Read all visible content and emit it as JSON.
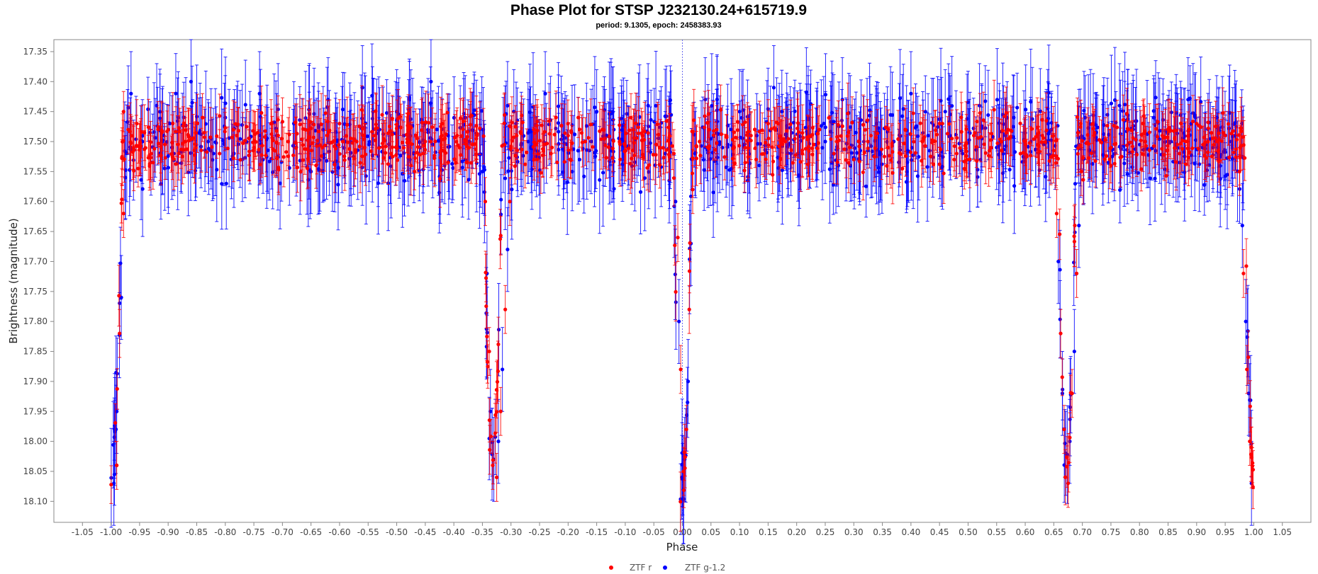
{
  "chart_data": {
    "type": "scatter",
    "title": "Phase Plot for STSP J232130.24+615719.9",
    "subtitle": "period: 9.1305, epoch: 2458383.93",
    "xlabel": "Phase",
    "ylabel": "Brightness (magnitude)",
    "xlim": [
      -1.1,
      1.1
    ],
    "ylim": [
      18.135,
      17.33
    ],
    "y_inverted": true,
    "x_ticks": [
      -1.05,
      -1.0,
      -0.95,
      -0.9,
      -0.85,
      -0.8,
      -0.75,
      -0.7,
      -0.65,
      -0.6,
      -0.55,
      -0.5,
      -0.45,
      -0.4,
      -0.35,
      -0.3,
      -0.25,
      -0.2,
      -0.15,
      -0.1,
      -0.05,
      0.0,
      0.05,
      0.1,
      0.15,
      0.2,
      0.25,
      0.3,
      0.35,
      0.4,
      0.45,
      0.5,
      0.55,
      0.6,
      0.65,
      0.7,
      0.75,
      0.8,
      0.85,
      0.9,
      0.95,
      1.0,
      1.05
    ],
    "y_ticks": [
      17.35,
      17.4,
      17.45,
      17.5,
      17.55,
      17.6,
      17.65,
      17.7,
      17.75,
      17.8,
      17.85,
      17.9,
      17.95,
      18.0,
      18.05,
      18.1
    ],
    "x_tick_labels": [
      "-1.05",
      "-1.00",
      "-0.95",
      "-0.90",
      "-0.85",
      "-0.80",
      "-0.75",
      "-0.70",
      "-0.65",
      "-0.60",
      "-0.55",
      "-0.50",
      "-0.45",
      "-0.40",
      "-0.35",
      "-0.30",
      "-0.25",
      "-0.20",
      "-0.15",
      "-0.10",
      "-0.05",
      "0.00",
      "0.05",
      "0.10",
      "0.15",
      "0.20",
      "0.25",
      "0.30",
      "0.35",
      "0.40",
      "0.45",
      "0.50",
      "0.55",
      "0.60",
      "0.65",
      "0.70",
      "0.75",
      "0.80",
      "0.85",
      "0.90",
      "0.95",
      "1.00",
      "1.05"
    ],
    "y_tick_labels": [
      "17.35",
      "17.40",
      "17.45",
      "17.50",
      "17.55",
      "17.60",
      "17.65",
      "17.70",
      "17.75",
      "17.80",
      "17.85",
      "17.90",
      "17.95",
      "18.00",
      "18.05",
      "18.10"
    ],
    "reference_line_x": 0.0,
    "baseline_magnitude": 17.5,
    "legend_position": "bottom-center",
    "series": [
      {
        "name": "ZTF r",
        "color": "#ff0000",
        "typical_error": 0.04,
        "points": [
          [
            -0.99,
            18.04
          ],
          [
            -0.985,
            17.82
          ],
          [
            -0.978,
            17.62
          ],
          [
            -0.97,
            17.48
          ],
          [
            -0.955,
            17.47
          ],
          [
            -0.93,
            17.52
          ],
          [
            -0.9,
            17.48
          ],
          [
            -0.87,
            17.5
          ],
          [
            -0.84,
            17.46
          ],
          [
            -0.81,
            17.52
          ],
          [
            -0.78,
            17.49
          ],
          [
            -0.75,
            17.51
          ],
          [
            -0.72,
            17.47
          ],
          [
            -0.69,
            17.5
          ],
          [
            -0.66,
            17.48
          ],
          [
            -0.63,
            17.51
          ],
          [
            -0.6,
            17.47
          ],
          [
            -0.57,
            17.5
          ],
          [
            -0.54,
            17.49
          ],
          [
            -0.51,
            17.52
          ],
          [
            -0.48,
            17.48
          ],
          [
            -0.45,
            17.5
          ],
          [
            -0.42,
            17.47
          ],
          [
            -0.39,
            17.51
          ],
          [
            -0.36,
            17.49
          ],
          [
            -0.345,
            17.6
          ],
          [
            -0.338,
            17.85
          ],
          [
            -0.332,
            18.04
          ],
          [
            -0.325,
            18.06
          ],
          [
            -0.318,
            17.95
          ],
          [
            -0.31,
            17.78
          ],
          [
            -0.302,
            17.6
          ],
          [
            -0.29,
            17.49
          ],
          [
            -0.26,
            17.48
          ],
          [
            -0.23,
            17.52
          ],
          [
            -0.2,
            17.49
          ],
          [
            -0.17,
            17.5
          ],
          [
            -0.14,
            17.48
          ],
          [
            -0.11,
            17.5
          ],
          [
            -0.09,
            17.46
          ],
          [
            -0.07,
            17.49
          ],
          [
            -0.04,
            17.51
          ],
          [
            -0.015,
            17.52
          ],
          [
            -0.008,
            17.66
          ],
          [
            -0.003,
            17.88
          ],
          [
            0.002,
            18.05
          ],
          [
            0.007,
            17.98
          ],
          [
            0.012,
            17.78
          ],
          [
            0.018,
            17.58
          ],
          [
            0.03,
            17.5
          ],
          [
            0.06,
            17.48
          ],
          [
            0.09,
            17.51
          ],
          [
            0.12,
            17.49
          ],
          [
            0.15,
            17.47
          ],
          [
            0.18,
            17.5
          ],
          [
            0.21,
            17.52
          ],
          [
            0.24,
            17.48
          ],
          [
            0.27,
            17.5
          ],
          [
            0.3,
            17.53
          ],
          [
            0.33,
            17.49
          ],
          [
            0.36,
            17.51
          ],
          [
            0.39,
            17.48
          ],
          [
            0.42,
            17.5
          ],
          [
            0.45,
            17.47
          ],
          [
            0.48,
            17.52
          ],
          [
            0.51,
            17.49
          ],
          [
            0.54,
            17.51
          ],
          [
            0.57,
            17.48
          ],
          [
            0.6,
            17.5
          ],
          [
            0.63,
            17.49
          ],
          [
            0.655,
            17.62
          ],
          [
            0.662,
            17.82
          ],
          [
            0.668,
            17.98
          ],
          [
            0.675,
            18.07
          ],
          [
            0.682,
            17.92
          ],
          [
            0.69,
            17.72
          ],
          [
            0.698,
            17.55
          ],
          [
            0.72,
            17.49
          ],
          [
            0.75,
            17.51
          ],
          [
            0.78,
            17.48
          ],
          [
            0.81,
            17.5
          ],
          [
            0.84,
            17.49
          ],
          [
            0.87,
            17.52
          ],
          [
            0.9,
            17.47
          ],
          [
            0.92,
            17.5
          ],
          [
            0.95,
            17.49
          ],
          [
            0.975,
            17.55
          ],
          [
            0.982,
            17.72
          ],
          [
            0.988,
            17.88
          ],
          [
            0.993,
            18.0
          ]
        ]
      },
      {
        "name": "ZTF g-1.2",
        "color": "#0000ff",
        "typical_error": 0.07,
        "points": [
          [
            -0.995,
            18.07
          ],
          [
            -0.99,
            17.95
          ],
          [
            -0.982,
            17.76
          ],
          [
            -0.975,
            17.56
          ],
          [
            -0.965,
            17.42
          ],
          [
            -0.945,
            17.5
          ],
          [
            -0.92,
            17.44
          ],
          [
            -0.89,
            17.52
          ],
          [
            -0.86,
            17.4
          ],
          [
            -0.83,
            17.5
          ],
          [
            -0.8,
            17.46
          ],
          [
            -0.77,
            17.53
          ],
          [
            -0.74,
            17.42
          ],
          [
            -0.71,
            17.49
          ],
          [
            -0.68,
            17.47
          ],
          [
            -0.65,
            17.55
          ],
          [
            -0.62,
            17.43
          ],
          [
            -0.59,
            17.5
          ],
          [
            -0.56,
            17.41
          ],
          [
            -0.53,
            17.48
          ],
          [
            -0.5,
            17.45
          ],
          [
            -0.47,
            17.52
          ],
          [
            -0.44,
            17.4
          ],
          [
            -0.41,
            17.49
          ],
          [
            -0.38,
            17.46
          ],
          [
            -0.35,
            17.55
          ],
          [
            -0.342,
            17.72
          ],
          [
            -0.336,
            17.95
          ],
          [
            -0.33,
            18.03
          ],
          [
            -0.322,
            18.0
          ],
          [
            -0.315,
            17.88
          ],
          [
            -0.306,
            17.68
          ],
          [
            -0.295,
            17.45
          ],
          [
            -0.27,
            17.5
          ],
          [
            -0.24,
            17.42
          ],
          [
            -0.21,
            17.49
          ],
          [
            -0.18,
            17.53
          ],
          [
            -0.15,
            17.45
          ],
          [
            -0.12,
            17.48
          ],
          [
            -0.095,
            17.51
          ],
          [
            -0.06,
            17.44
          ],
          [
            -0.03,
            17.52
          ],
          [
            -0.012,
            17.6
          ],
          [
            -0.006,
            17.8
          ],
          [
            -0.001,
            18.06
          ],
          [
            0.004,
            18.03
          ],
          [
            0.01,
            17.9
          ],
          [
            0.015,
            17.67
          ],
          [
            0.022,
            17.52
          ],
          [
            0.04,
            17.43
          ],
          [
            0.07,
            17.51
          ],
          [
            0.1,
            17.45
          ],
          [
            0.13,
            17.49
          ],
          [
            0.16,
            17.41
          ],
          [
            0.19,
            17.52
          ],
          [
            0.22,
            17.46
          ],
          [
            0.25,
            17.5
          ],
          [
            0.28,
            17.43
          ],
          [
            0.31,
            17.53
          ],
          [
            0.34,
            17.47
          ],
          [
            0.37,
            17.5
          ],
          [
            0.4,
            17.42
          ],
          [
            0.43,
            17.49
          ],
          [
            0.46,
            17.45
          ],
          [
            0.49,
            17.52
          ],
          [
            0.52,
            17.44
          ],
          [
            0.55,
            17.51
          ],
          [
            0.58,
            17.46
          ],
          [
            0.61,
            17.5
          ],
          [
            0.64,
            17.47
          ],
          [
            0.658,
            17.7
          ],
          [
            0.665,
            17.92
          ],
          [
            0.671,
            18.02
          ],
          [
            0.678,
            18.0
          ],
          [
            0.686,
            17.85
          ],
          [
            0.694,
            17.64
          ],
          [
            0.705,
            17.46
          ],
          [
            0.735,
            17.5
          ],
          [
            0.765,
            17.44
          ],
          [
            0.795,
            17.52
          ],
          [
            0.825,
            17.46
          ],
          [
            0.855,
            17.5
          ],
          [
            0.885,
            17.43
          ],
          [
            0.91,
            17.51
          ],
          [
            0.935,
            17.46
          ],
          [
            0.96,
            17.5
          ],
          [
            0.98,
            17.64
          ],
          [
            0.986,
            17.8
          ],
          [
            0.991,
            17.92
          ],
          [
            0.996,
            18.07
          ]
        ]
      }
    ]
  }
}
